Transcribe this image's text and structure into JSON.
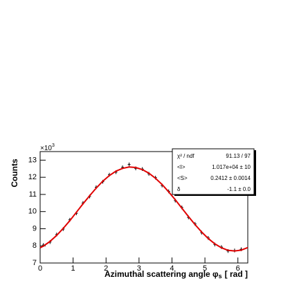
{
  "chart_data": {
    "type": "histfit",
    "ylabel": "Counts",
    "multiplier_base": "×10",
    "multiplier_exp": "3",
    "xlabel": "Azimuthal scattering angle φ",
    "xlabel_sub": "s",
    "xlabel_unit": "[ rad ]",
    "xlim": [
      0,
      6.3
    ],
    "ylim": [
      7,
      13.5
    ],
    "xticks": [
      0,
      1,
      2,
      3,
      4,
      5,
      6
    ],
    "yticks": [
      7,
      8,
      9,
      10,
      11,
      12,
      13
    ],
    "stats": [
      [
        "χ² / ndf",
        "91.13 / 97"
      ],
      [
        "<I>",
        "1.017e+04 ± 10"
      ],
      [
        "<S>",
        "0.2412 ± 0.0014"
      ],
      [
        "δ",
        "-1.1 ± 0.0"
      ]
    ],
    "data": {
      "color": "#000000",
      "x": [
        0.1,
        0.3,
        0.5,
        0.7,
        0.9,
        1.1,
        1.3,
        1.5,
        1.7,
        1.9,
        2.1,
        2.3,
        2.5,
        2.7,
        2.9,
        3.1,
        3.3,
        3.5,
        3.7,
        3.9,
        4.1,
        4.3,
        4.5,
        4.7,
        4.9,
        5.1,
        5.3,
        5.5,
        5.7,
        5.9,
        6.1
      ],
      "values": [
        8.05,
        8.22,
        8.66,
        8.98,
        9.52,
        9.9,
        10.5,
        10.88,
        11.42,
        11.74,
        12.15,
        12.3,
        12.58,
        12.75,
        12.52,
        12.48,
        12.2,
        11.98,
        11.52,
        11.18,
        10.64,
        10.24,
        9.66,
        9.28,
        8.77,
        8.46,
        8.08,
        7.93,
        7.7,
        7.73,
        7.8
      ],
      "errors": [
        0.11,
        0.11,
        0.11,
        0.11,
        0.11,
        0.11,
        0.11,
        0.11,
        0.11,
        0.11,
        0.11,
        0.11,
        0.11,
        0.11,
        0.11,
        0.11,
        0.11,
        0.11,
        0.11,
        0.11,
        0.11,
        0.11,
        0.11,
        0.11,
        0.11,
        0.11,
        0.11,
        0.11,
        0.11,
        0.11,
        0.11
      ]
    },
    "fit": {
      "color": "#e00000",
      "x": [
        0,
        0.1,
        0.3,
        0.5,
        0.7,
        0.9,
        1.1,
        1.3,
        1.5,
        1.7,
        1.9,
        2.1,
        2.3,
        2.5,
        2.7,
        2.9,
        3.1,
        3.3,
        3.5,
        3.7,
        3.9,
        4.1,
        4.3,
        4.5,
        4.7,
        4.9,
        5.1,
        5.3,
        5.5,
        5.7,
        5.9,
        6.1,
        6.3
      ],
      "values": [
        7.89,
        7.99,
        8.26,
        8.61,
        9.02,
        9.47,
        9.96,
        10.45,
        10.92,
        11.37,
        11.77,
        12.1,
        12.36,
        12.52,
        12.6,
        12.57,
        12.45,
        12.24,
        11.94,
        11.58,
        11.15,
        10.69,
        10.2,
        9.71,
        9.24,
        8.81,
        8.43,
        8.12,
        7.89,
        7.74,
        7.7,
        7.75,
        7.9
      ]
    }
  }
}
